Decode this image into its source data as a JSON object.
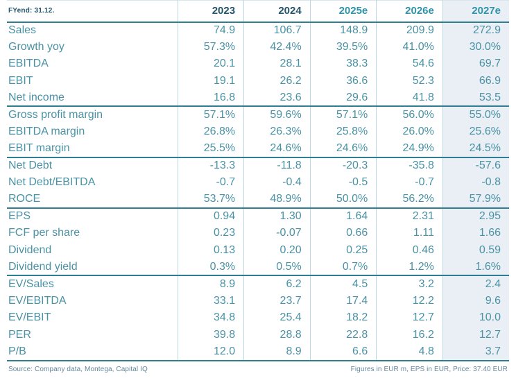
{
  "table": {
    "header": {
      "label": "FYend: 31.12.",
      "years": [
        "2023",
        "2024",
        "2025e",
        "2026e",
        "2027e"
      ]
    },
    "sections": [
      {
        "rows": [
          {
            "label": "Sales",
            "values": [
              "74.9",
              "106.7",
              "148.9",
              "209.9",
              "272.9"
            ]
          },
          {
            "label": "Growth yoy",
            "values": [
              "57.3%",
              "42.4%",
              "39.5%",
              "41.0%",
              "30.0%"
            ]
          },
          {
            "label": "EBITDA",
            "values": [
              "20.1",
              "28.1",
              "38.3",
              "54.6",
              "69.7"
            ]
          },
          {
            "label": "EBIT",
            "values": [
              "19.1",
              "26.2",
              "36.6",
              "52.3",
              "66.9"
            ]
          },
          {
            "label": "Net income",
            "values": [
              "16.8",
              "23.6",
              "29.6",
              "41.8",
              "53.5"
            ]
          }
        ]
      },
      {
        "rows": [
          {
            "label": "Gross profit margin",
            "values": [
              "57.1%",
              "59.6%",
              "57.1%",
              "56.0%",
              "55.0%"
            ]
          },
          {
            "label": "EBITDA margin",
            "values": [
              "26.8%",
              "26.3%",
              "25.8%",
              "26.0%",
              "25.6%"
            ]
          },
          {
            "label": "EBIT margin",
            "values": [
              "25.5%",
              "24.6%",
              "24.6%",
              "24.9%",
              "24.5%"
            ]
          }
        ]
      },
      {
        "rows": [
          {
            "label": "Net Debt",
            "values": [
              "-13.3",
              "-11.8",
              "-20.3",
              "-35.8",
              "-57.6"
            ]
          },
          {
            "label": "Net Debt/EBITDA",
            "values": [
              "-0.7",
              "-0.4",
              "-0.5",
              "-0.7",
              "-0.8"
            ]
          },
          {
            "label": "ROCE",
            "values": [
              "53.7%",
              "48.9%",
              "50.0%",
              "56.2%",
              "57.9%"
            ]
          }
        ]
      },
      {
        "rows": [
          {
            "label": "EPS",
            "values": [
              "0.94",
              "1.30",
              "1.64",
              "2.31",
              "2.95"
            ]
          },
          {
            "label": "FCF per share",
            "values": [
              "0.23",
              "-0.07",
              "0.66",
              "1.11",
              "1.66"
            ]
          },
          {
            "label": "Dividend",
            "values": [
              "0.13",
              "0.20",
              "0.25",
              "0.46",
              "0.59"
            ]
          },
          {
            "label": "Dividend yield",
            "values": [
              "0.3%",
              "0.5%",
              "0.7%",
              "1.2%",
              "1.6%"
            ]
          }
        ]
      },
      {
        "rows": [
          {
            "label": "EV/Sales",
            "values": [
              "8.9",
              "6.2",
              "4.5",
              "3.2",
              "2.4"
            ]
          },
          {
            "label": "EV/EBITDA",
            "values": [
              "33.1",
              "23.7",
              "17.4",
              "12.2",
              "9.6"
            ]
          },
          {
            "label": "EV/EBIT",
            "values": [
              "34.8",
              "25.4",
              "18.2",
              "12.7",
              "10.0"
            ]
          },
          {
            "label": "PER",
            "values": [
              "39.8",
              "28.8",
              "22.8",
              "16.2",
              "12.7"
            ]
          },
          {
            "label": "P/B",
            "values": [
              "12.0",
              "8.9",
              "6.6",
              "4.8",
              "3.7"
            ]
          }
        ]
      }
    ],
    "footer": {
      "left": "Source: Company data, Montega, Capital IQ",
      "right": "Figures in EUR m, EPS in EUR, Price: 37.40 EUR"
    }
  },
  "colors": {
    "accent_teal": "#2e7d93",
    "text_teal": "#4a92a5",
    "header_dark": "#23546b",
    "header_estimate": "#2f93ab",
    "highlight_column_bg": "#e9eff5",
    "grid_line": "#bcd9e1",
    "footer_text": "#64879a"
  }
}
